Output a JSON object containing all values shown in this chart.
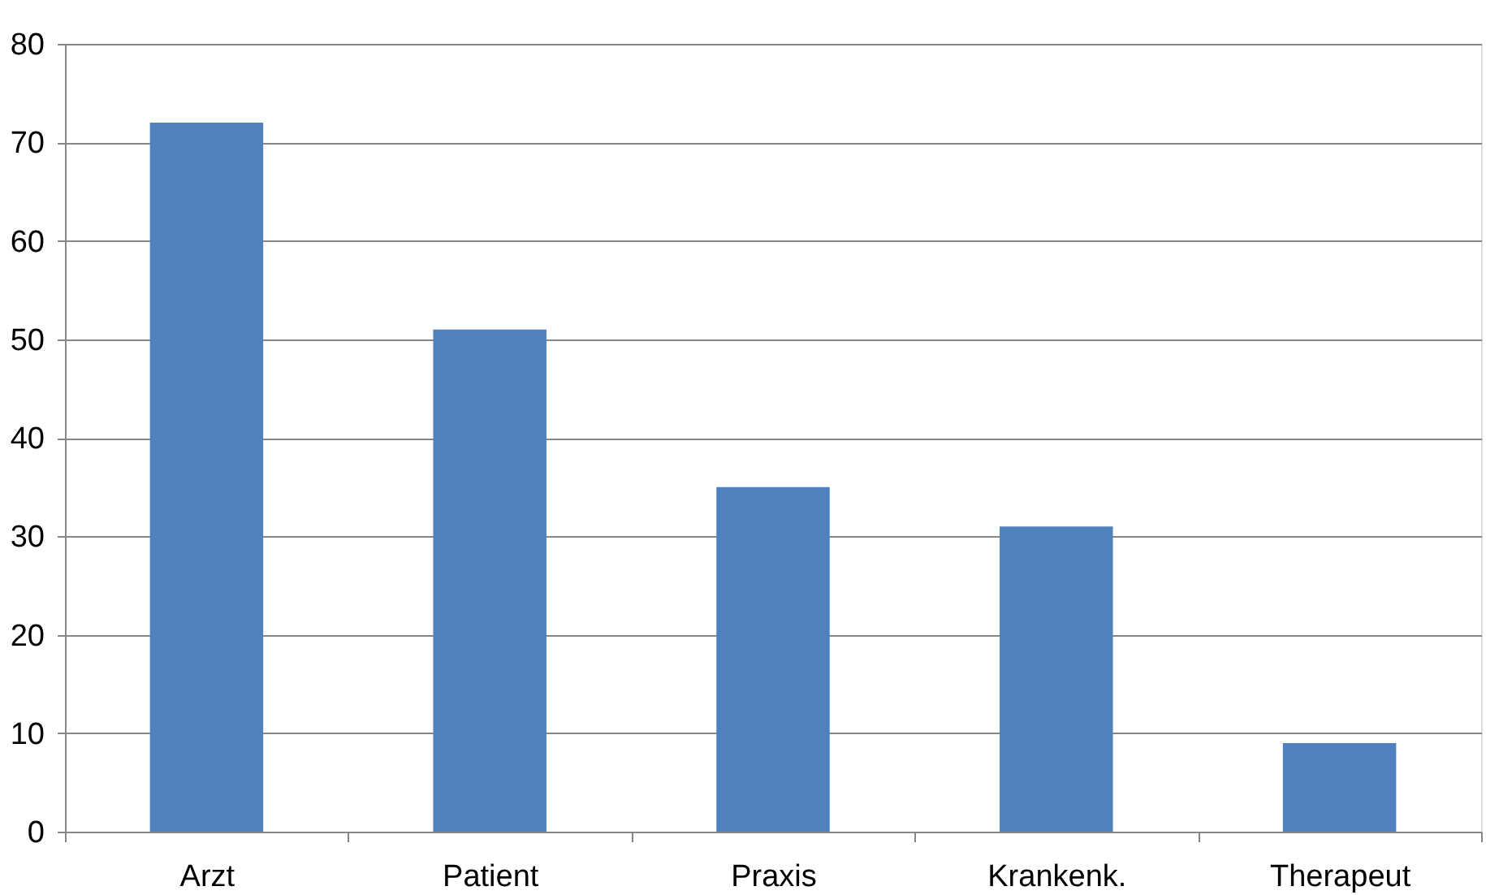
{
  "chart_data": {
    "type": "bar",
    "categories": [
      "Arzt",
      "Patient",
      "Praxis",
      "Krankenk.",
      "Therapeut"
    ],
    "values": [
      72,
      51,
      35,
      31,
      9
    ],
    "color": "#4f81bd",
    "ylim": [
      0,
      80
    ],
    "yticks": [
      0,
      10,
      20,
      30,
      40,
      50,
      60,
      70,
      80
    ],
    "grid": "y"
  }
}
